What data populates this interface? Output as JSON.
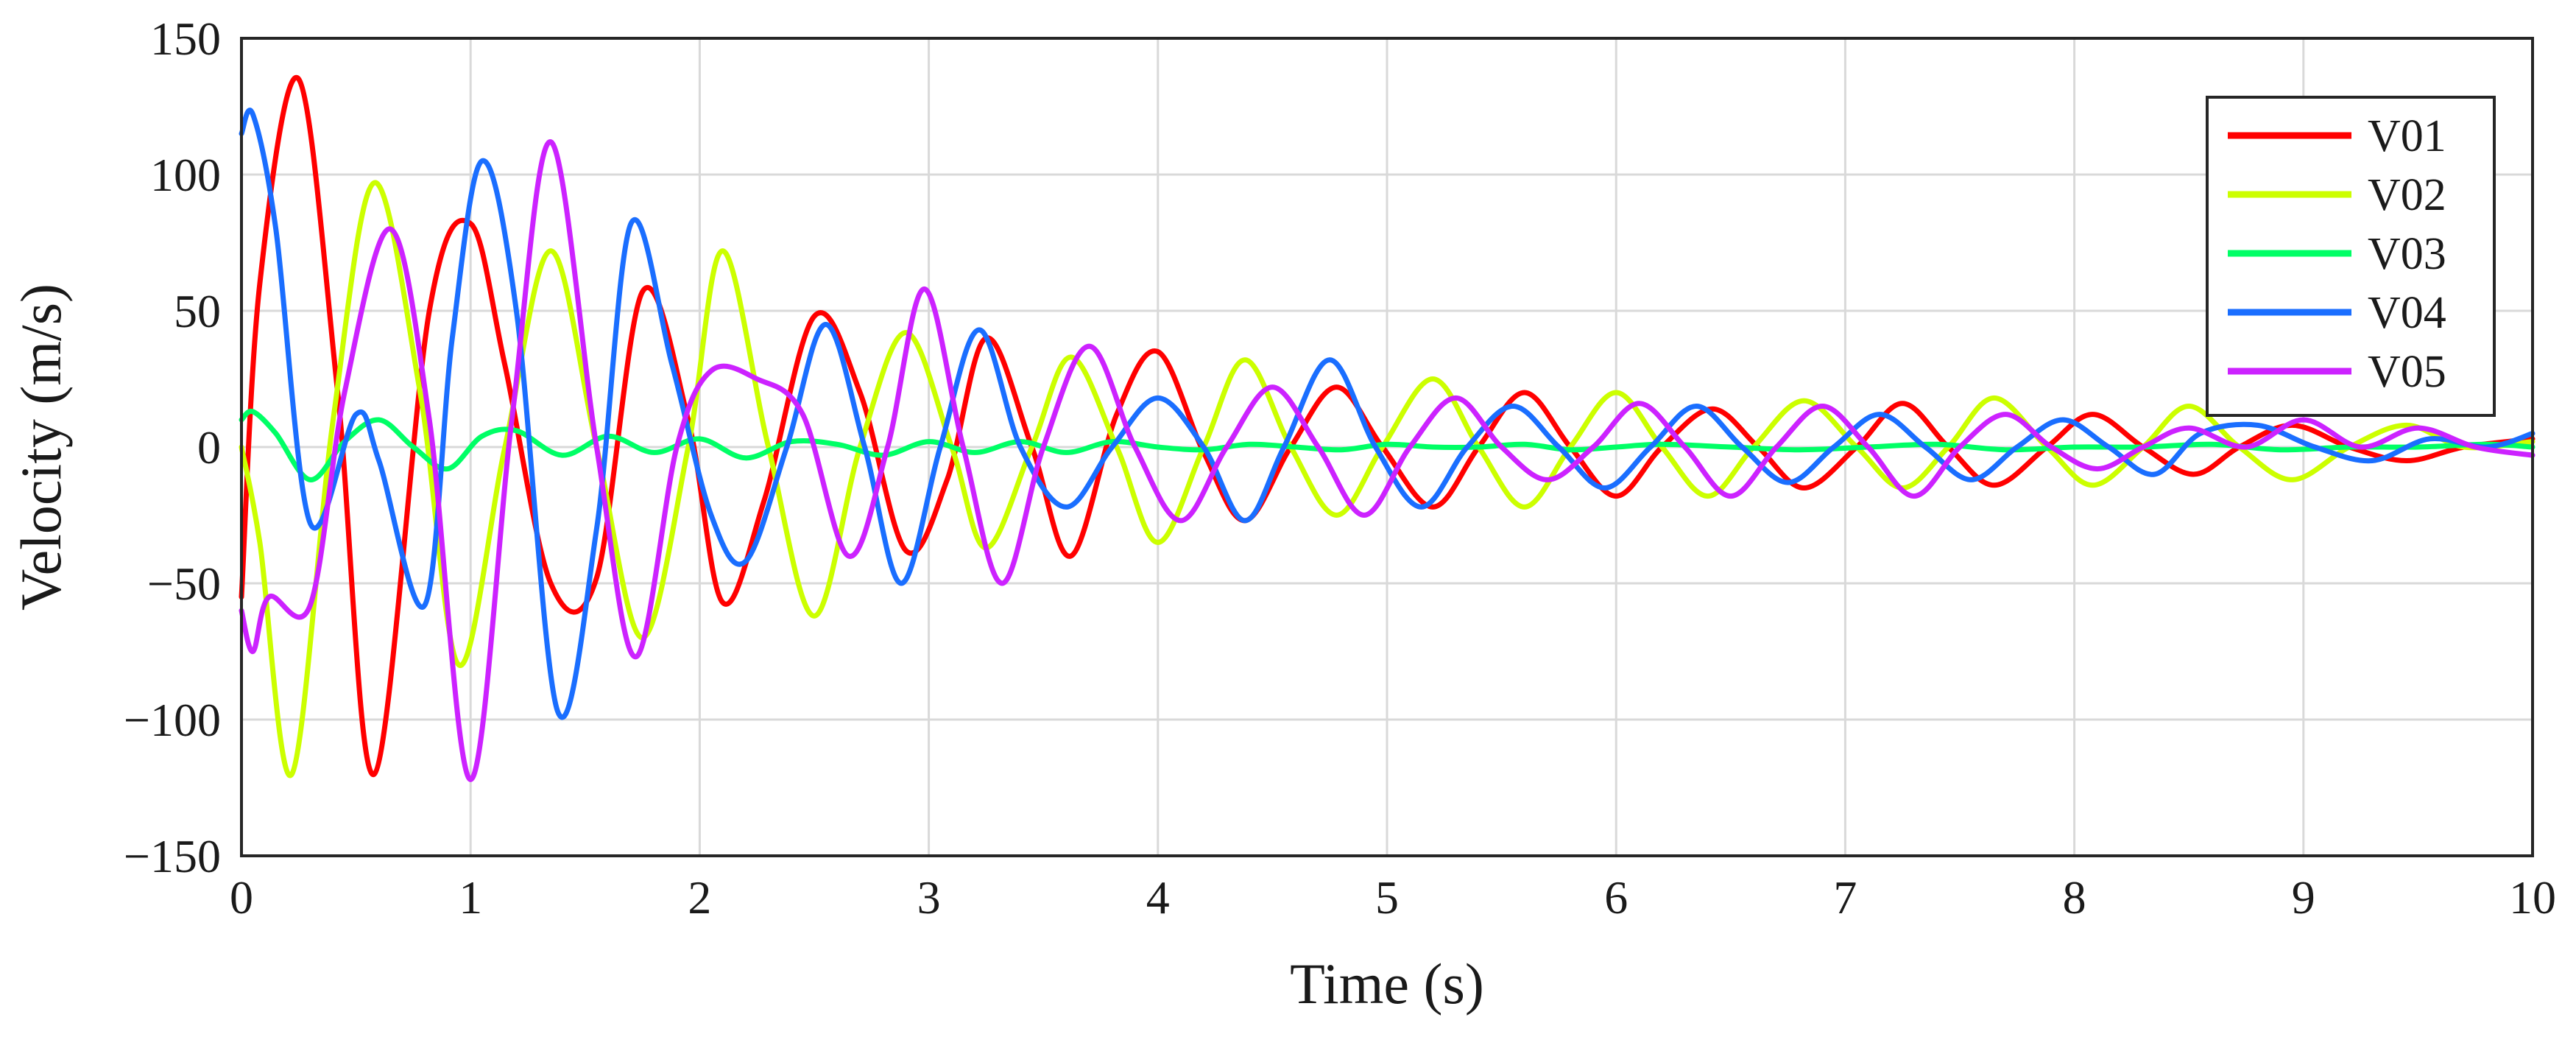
{
  "chart_data": {
    "type": "line",
    "title": "",
    "xlabel": "Time (s)",
    "ylabel": "Velocity (m/s)",
    "xlim": [
      0,
      10
    ],
    "ylim": [
      -150,
      150
    ],
    "xticks": [
      0,
      1,
      2,
      3,
      4,
      5,
      6,
      7,
      8,
      9,
      10
    ],
    "yticks": [
      -150,
      -100,
      -50,
      0,
      50,
      100,
      150
    ],
    "xtick_labels": [
      "0",
      "1",
      "2",
      "3",
      "4",
      "5",
      "6",
      "7",
      "8",
      "9",
      "10"
    ],
    "ytick_labels": [
      "−150",
      "−100",
      "−50",
      "0",
      "50",
      "100",
      "150"
    ],
    "grid": true,
    "legend_position": "top-right",
    "series": [
      {
        "name": "V01",
        "color": "#ff0000",
        "x": [
          0,
          0.08,
          0.25,
          0.42,
          0.58,
          0.82,
          1.0,
          1.15,
          1.35,
          1.55,
          1.75,
          1.95,
          2.1,
          2.28,
          2.5,
          2.7,
          2.9,
          3.08,
          3.25,
          3.45,
          3.62,
          3.82,
          4.0,
          4.2,
          4.38,
          4.58,
          4.78,
          4.98,
          5.2,
          5.4,
          5.6,
          5.8,
          6.0,
          6.2,
          6.42,
          6.62,
          6.82,
          7.05,
          7.25,
          7.45,
          7.65,
          7.88,
          8.08,
          8.3,
          8.52,
          8.72,
          8.95,
          9.2,
          9.45,
          9.7,
          10.0
        ],
        "y": [
          -55,
          60,
          135,
          20,
          -120,
          50,
          82,
          30,
          -50,
          -48,
          57,
          10,
          -57,
          -20,
          48,
          20,
          -38,
          -12,
          40,
          0,
          -40,
          12,
          35,
          -2,
          -27,
          0,
          22,
          0,
          -22,
          0,
          20,
          0,
          -18,
          0,
          14,
          0,
          -15,
          0,
          16,
          0,
          -14,
          0,
          12,
          0,
          -10,
          0,
          8,
          0,
          -5,
          0,
          3
        ]
      },
      {
        "name": "V02",
        "color": "#ccff00",
        "x": [
          0,
          0.08,
          0.22,
          0.4,
          0.58,
          0.78,
          0.95,
          1.15,
          1.35,
          1.55,
          1.75,
          1.95,
          2.1,
          2.3,
          2.5,
          2.7,
          2.9,
          3.1,
          3.25,
          3.45,
          3.62,
          3.82,
          4.0,
          4.2,
          4.38,
          4.58,
          4.78,
          4.98,
          5.2,
          5.4,
          5.6,
          5.8,
          6.0,
          6.2,
          6.4,
          6.6,
          6.82,
          7.05,
          7.25,
          7.45,
          7.65,
          7.88,
          8.08,
          8.3,
          8.5,
          8.72,
          8.95,
          9.2,
          9.45,
          9.7,
          10.0
        ],
        "y": [
          0,
          -35,
          -120,
          10,
          97,
          20,
          -80,
          0,
          72,
          0,
          -70,
          0,
          72,
          0,
          -62,
          0,
          42,
          0,
          -37,
          0,
          33,
          0,
          -35,
          0,
          32,
          0,
          -25,
          0,
          25,
          0,
          -22,
          0,
          20,
          0,
          -18,
          0,
          17,
          0,
          -15,
          0,
          18,
          0,
          -14,
          0,
          15,
          0,
          -12,
          0,
          8,
          0,
          2
        ]
      },
      {
        "name": "V03",
        "color": "#00ff66",
        "x": [
          0,
          0.05,
          0.15,
          0.3,
          0.45,
          0.6,
          0.75,
          0.9,
          1.05,
          1.2,
          1.4,
          1.6,
          1.8,
          2.0,
          2.2,
          2.4,
          2.6,
          2.8,
          3.0,
          3.2,
          3.4,
          3.6,
          3.8,
          4.0,
          4.2,
          4.4,
          4.6,
          4.8,
          5.0,
          5.2,
          5.4,
          5.6,
          5.8,
          6.0,
          6.2,
          6.5,
          6.8,
          7.1,
          7.4,
          7.7,
          8.0,
          8.3,
          8.6,
          8.9,
          9.2,
          9.5,
          9.8,
          10.0
        ],
        "y": [
          10,
          13,
          5,
          -12,
          2,
          10,
          0,
          -8,
          4,
          6,
          -3,
          4,
          -2,
          3,
          -4,
          2,
          1,
          -3,
          2,
          -2,
          2,
          -2,
          2,
          0,
          -1,
          1,
          0,
          -1,
          1,
          0,
          0,
          1,
          -1,
          0,
          1,
          0,
          -1,
          0,
          1,
          -1,
          0,
          0,
          1,
          -1,
          0,
          0,
          1,
          0
        ]
      },
      {
        "name": "V04",
        "color": "#1a6eff",
        "x": [
          0,
          0.05,
          0.15,
          0.3,
          0.5,
          0.6,
          0.8,
          0.92,
          1.05,
          1.2,
          1.38,
          1.55,
          1.7,
          1.88,
          2.05,
          2.2,
          2.38,
          2.55,
          2.72,
          2.88,
          3.05,
          3.22,
          3.4,
          3.6,
          3.8,
          4.0,
          4.2,
          4.38,
          4.55,
          4.75,
          4.95,
          5.15,
          5.35,
          5.55,
          5.75,
          5.95,
          6.15,
          6.35,
          6.55,
          6.75,
          6.95,
          7.15,
          7.35,
          7.55,
          7.75,
          7.95,
          8.15,
          8.35,
          8.55,
          8.8,
          9.05,
          9.3,
          9.55,
          9.8,
          10.0
        ],
        "y": [
          115,
          122,
          80,
          -28,
          12,
          -5,
          -58,
          40,
          105,
          50,
          -97,
          -30,
          82,
          30,
          -25,
          -42,
          0,
          45,
          0,
          -50,
          0,
          43,
          0,
          -22,
          0,
          18,
          0,
          -27,
          0,
          32,
          0,
          -22,
          0,
          15,
          0,
          -15,
          0,
          15,
          0,
          -13,
          0,
          12,
          0,
          -12,
          0,
          10,
          0,
          -10,
          5,
          8,
          0,
          -5,
          3,
          0,
          5
        ]
      },
      {
        "name": "V05",
        "color": "#cc22ff",
        "x": [
          0,
          0.05,
          0.12,
          0.3,
          0.45,
          0.65,
          0.82,
          1.0,
          1.18,
          1.35,
          1.55,
          1.72,
          1.9,
          2.05,
          2.25,
          2.45,
          2.65,
          2.82,
          2.98,
          3.15,
          3.32,
          3.5,
          3.7,
          3.9,
          4.1,
          4.3,
          4.5,
          4.7,
          4.9,
          5.1,
          5.3,
          5.5,
          5.7,
          5.9,
          6.1,
          6.3,
          6.5,
          6.7,
          6.9,
          7.1,
          7.3,
          7.5,
          7.7,
          7.9,
          8.1,
          8.3,
          8.5,
          8.75,
          9.0,
          9.25,
          9.5,
          9.75,
          10.0
        ],
        "y": [
          -60,
          -75,
          -55,
          -58,
          20,
          80,
          10,
          -122,
          10,
          112,
          0,
          -77,
          0,
          28,
          25,
          12,
          -40,
          0,
          58,
          0,
          -50,
          0,
          37,
          0,
          -27,
          0,
          22,
          0,
          -25,
          0,
          18,
          0,
          -12,
          0,
          16,
          0,
          -18,
          0,
          15,
          0,
          -18,
          0,
          12,
          0,
          -8,
          0,
          7,
          0,
          10,
          0,
          7,
          0,
          -3
        ]
      }
    ]
  }
}
